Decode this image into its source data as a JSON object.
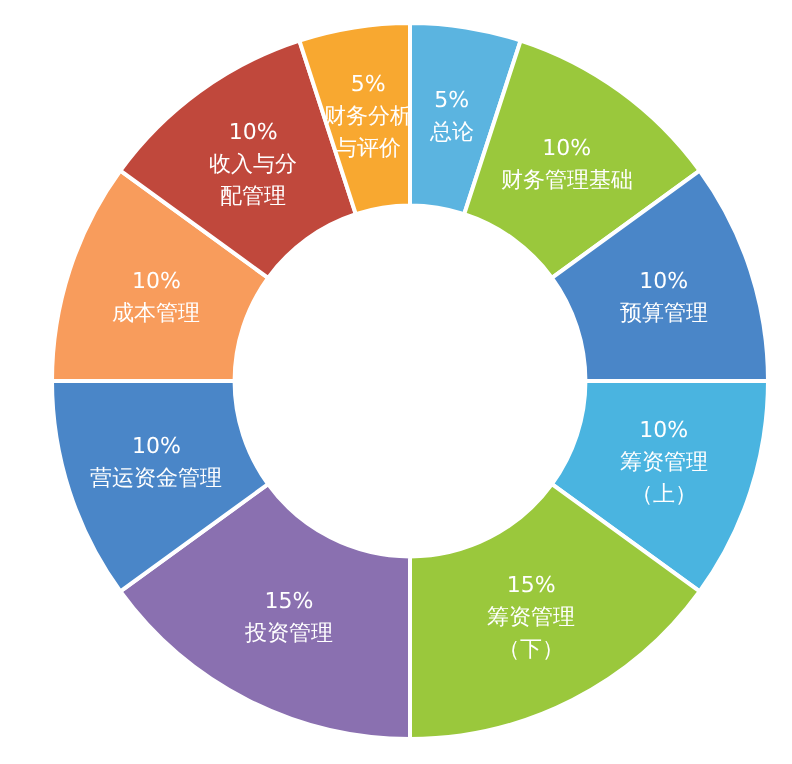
{
  "chart_data": {
    "type": "donut",
    "categories": [
      "总论",
      "财务管理基础",
      "预算管理",
      "筹资管理（上）",
      "筹资管理（下）",
      "投资管理",
      "营运资金管理",
      "成本管理",
      "收入与分配管理",
      "财务分析与评价"
    ],
    "values": [
      5,
      10,
      10,
      10,
      15,
      15,
      10,
      10,
      10,
      5
    ],
    "value_labels": [
      "5%",
      "10%",
      "10%",
      "10%",
      "15%",
      "15%",
      "10%",
      "10%",
      "10%",
      "5%"
    ],
    "colors": [
      "#5bb4e0",
      "#9ac83c",
      "#4a86c8",
      "#4ab4e0",
      "#9ac83c",
      "#8a70b0",
      "#4a86c8",
      "#f89c5c",
      "#c0483c",
      "#f8a830"
    ],
    "legend": false
  }
}
